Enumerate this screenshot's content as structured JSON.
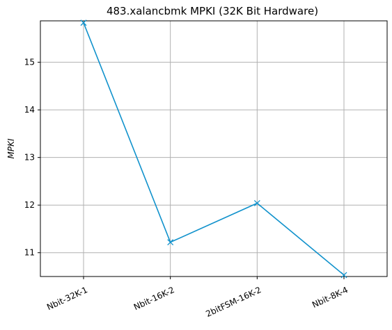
{
  "chart_data": {
    "type": "line",
    "title": "483.xalancbmk MPKI (32K Bit Hardware)",
    "xlabel": "",
    "ylabel": "MPKI",
    "categories": [
      "Nbit-32K-1",
      "Nbit-16K-2",
      "2bitFSM-16K-2",
      "Nbit-8K-4"
    ],
    "series": [
      {
        "values": [
          15.83,
          11.22,
          12.04,
          10.53
        ],
        "color": "#1192cc",
        "marker": "x"
      }
    ],
    "ylim": [
      10.5,
      15.87
    ],
    "yticks": [
      11,
      12,
      13,
      14,
      15
    ],
    "grid": true,
    "grid_color": "#b0b0b0",
    "legend": "none",
    "xtick_rotation": -25
  }
}
